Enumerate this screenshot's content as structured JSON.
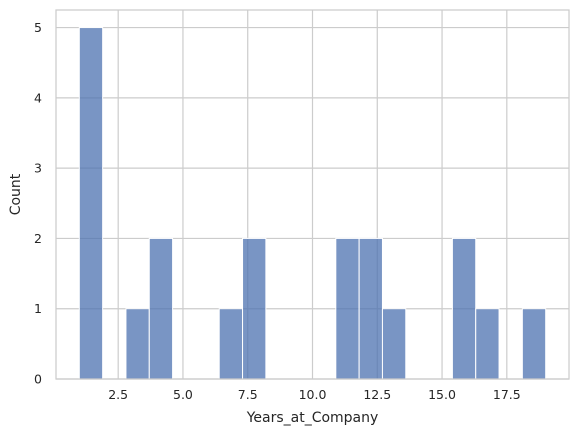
{
  "chart_data": {
    "type": "bar",
    "bin_edges": [
      1.0,
      1.9,
      2.8,
      3.7,
      4.6,
      5.5,
      6.4,
      7.3,
      8.2,
      9.1,
      10.0,
      10.9,
      11.8,
      12.7,
      13.6,
      14.5,
      15.4,
      16.3,
      17.2,
      18.1,
      19.0
    ],
    "values": [
      5,
      0,
      1,
      2,
      0,
      0,
      1,
      2,
      0,
      0,
      0,
      2,
      2,
      1,
      0,
      0,
      2,
      1,
      0,
      1
    ],
    "xlabel": "Years_at_Company",
    "ylabel": "Count",
    "xlim": [
      0.1,
      19.9
    ],
    "ylim": [
      0,
      5.25
    ],
    "x_ticks": [
      2.5,
      5.0,
      7.5,
      10.0,
      12.5,
      15.0,
      17.5
    ],
    "x_tick_labels": [
      "2.5",
      "5.0",
      "7.5",
      "10.0",
      "12.5",
      "15.0",
      "17.5"
    ],
    "y_ticks": [
      0,
      1,
      2,
      3,
      4,
      5
    ],
    "y_tick_labels": [
      "0",
      "1",
      "2",
      "3",
      "4",
      "5"
    ],
    "grid": true,
    "bar_color": "#4c72b0"
  }
}
